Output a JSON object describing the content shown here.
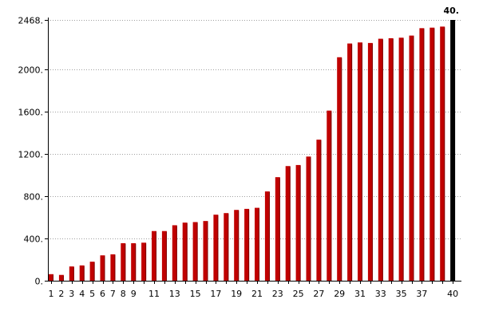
{
  "chart_data": {
    "type": "bar",
    "title": "",
    "xlabel": "",
    "ylabel": "",
    "categories": [
      "1",
      "2",
      "3",
      "4",
      "5",
      "6",
      "7",
      "8",
      "9",
      "10",
      "11",
      "12",
      "13",
      "14",
      "15",
      "16",
      "17",
      "18",
      "19",
      "20",
      "21",
      "22",
      "23",
      "24",
      "25",
      "26",
      "27",
      "28",
      "29",
      "30",
      "31",
      "32",
      "33",
      "34",
      "35",
      "36",
      "37",
      "38",
      "39",
      "40"
    ],
    "x_tick_labels": [
      "1",
      "2",
      "3",
      "4",
      "5",
      "6",
      "7",
      "8",
      "9",
      "11",
      "13",
      "15",
      "17",
      "19",
      "21",
      "23",
      "25",
      "27",
      "29",
      "31",
      "33",
      "35",
      "37",
      "40"
    ],
    "values": [
      62,
      55,
      135,
      145,
      180,
      240,
      250,
      355,
      355,
      360,
      470,
      470,
      525,
      550,
      555,
      565,
      625,
      640,
      670,
      680,
      690,
      845,
      980,
      1085,
      1095,
      1175,
      1335,
      1610,
      2115,
      2245,
      2255,
      2250,
      2290,
      2295,
      2300,
      2320,
      2390,
      2395,
      2405,
      2468
    ],
    "y_tick_labels": [
      "0.",
      "400.",
      "800.",
      "1200.",
      "1600.",
      "2000.",
      "2468."
    ],
    "y_ticks": [
      0,
      400,
      800,
      1200,
      1600,
      2000,
      2468
    ],
    "ylim": [
      0,
      2468
    ],
    "corner_label": "40.",
    "grid": "horizontal dotted",
    "bar_color": "#c00000",
    "bar_dark_color": "#7a0000",
    "last_bar_color": "#000000"
  }
}
